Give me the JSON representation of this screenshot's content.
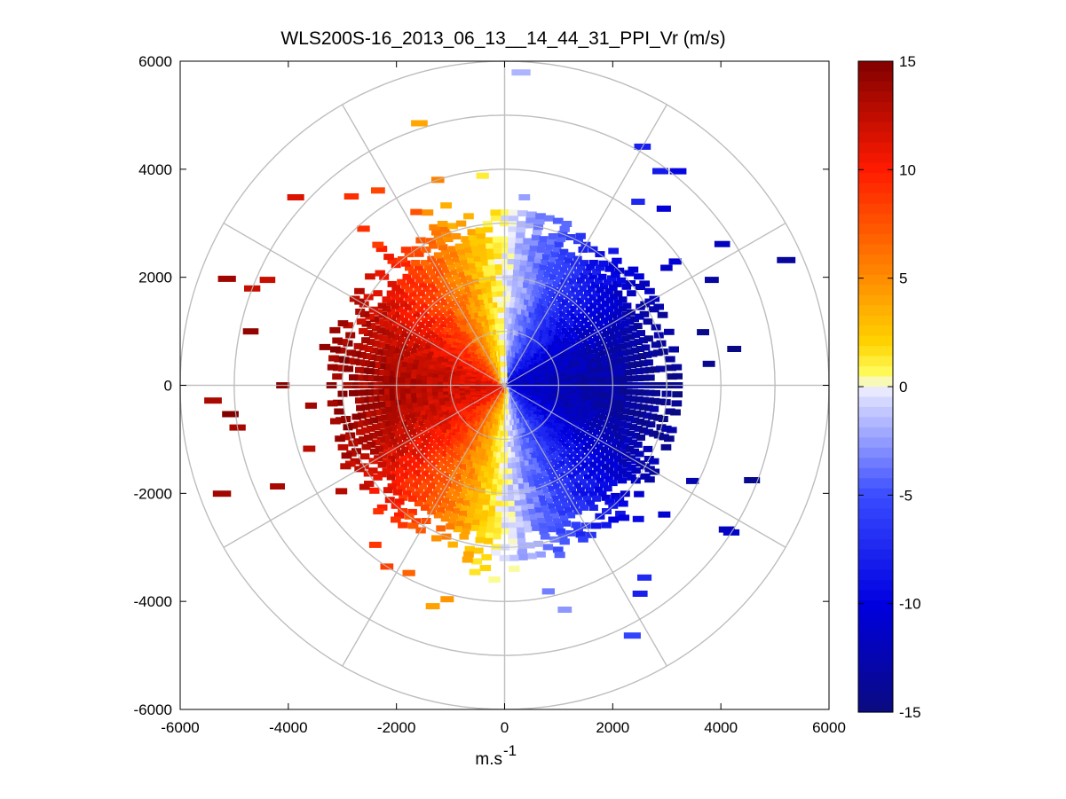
{
  "chart_data": {
    "type": "heatmap",
    "subtype": "polar-ppi",
    "title": "WLS200S-16_2013_06_13__14_44_31_PPI_Vr (m/s)",
    "xlabel": "m.s",
    "xlabel_superscript": "-1",
    "ylabel": "",
    "xlim": [
      -6000,
      6000
    ],
    "ylim": [
      -6000,
      6000
    ],
    "x_ticks": [
      -6000,
      -4000,
      -2000,
      0,
      2000,
      4000,
      6000
    ],
    "y_ticks": [
      6000,
      4000,
      2000,
      0,
      -2000,
      -4000,
      -6000
    ],
    "x_tick_labels": [
      "-6000",
      "-4000",
      "-2000",
      "0",
      "2000",
      "4000",
      "6000"
    ],
    "y_tick_labels": [
      "6000",
      "4000",
      "2000",
      "0",
      "-2000",
      "-4000",
      "-6000"
    ],
    "polar_grid": {
      "ring_radii": [
        1000,
        2000,
        3000,
        4000,
        5000,
        6000
      ],
      "spoke_angles_deg": [
        0,
        30,
        60,
        90,
        120,
        150,
        180,
        210,
        240,
        270,
        300,
        330
      ]
    },
    "colorbar": {
      "range": [
        -15,
        15
      ],
      "tick_values": [
        15,
        10,
        5,
        0,
        -5,
        -10,
        -15
      ],
      "tick_labels": [
        "15",
        "10",
        "5",
        "0",
        "-5",
        "-10",
        "-15"
      ],
      "colormap_stops": [
        {
          "value": -15,
          "color": "#0a0a80"
        },
        {
          "value": -10,
          "color": "#0000e0"
        },
        {
          "value": -5,
          "color": "#3a4cff"
        },
        {
          "value": -1,
          "color": "#c8ccff"
        },
        {
          "value": 0,
          "color": "#f2f2ff"
        },
        {
          "value": 0.5,
          "color": "#ffff66"
        },
        {
          "value": 2,
          "color": "#ffd400"
        },
        {
          "value": 5,
          "color": "#ff8c00"
        },
        {
          "value": 10,
          "color": "#ff1a00"
        },
        {
          "value": 15,
          "color": "#800000"
        }
      ]
    },
    "field_model": {
      "description": "Radial velocity approx. -amplitude*sin(azimuth from north); positive (red) on west half, negative (blue) on east half",
      "amplitude_ms": 13,
      "dense_range_m": 3000,
      "sparse_max_range_m": 5800,
      "range_gate_m": 100,
      "azimuth_step_deg": 3
    }
  }
}
